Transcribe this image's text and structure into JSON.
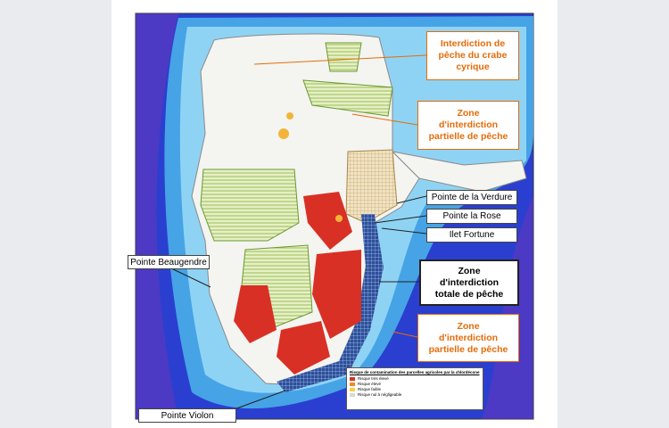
{
  "labels": {
    "crab_ban": {
      "lines": [
        "Interdiction de",
        "pêche du crabe",
        "cyrique"
      ]
    },
    "partial_north": {
      "lines": [
        "Zone",
        "d'interdiction",
        "partielle de pêche"
      ]
    },
    "verdure": {
      "lines": [
        "Pointe de la Verdure"
      ]
    },
    "la_rose": {
      "lines": [
        "Pointe la Rose"
      ]
    },
    "fortune": {
      "lines": [
        "Ilet Fortune"
      ]
    },
    "total": {
      "lines": [
        "Zone",
        "d'interdiction",
        "totale de pêche"
      ]
    },
    "partial_south": {
      "lines": [
        "Zone",
        "d'interdiction",
        "partielle de pêche"
      ]
    },
    "beaugendre": {
      "lines": [
        "Pointe Beaugendre"
      ]
    },
    "violon": {
      "lines": [
        "Pointe Violon"
      ]
    }
  },
  "legend": {
    "title": "Risque de contamination des parcelles agricoles par la chlordécone",
    "items": [
      "Risque très élevé",
      "Risque élevé",
      "Risque faible",
      "Risque nul à négligeable"
    ]
  }
}
